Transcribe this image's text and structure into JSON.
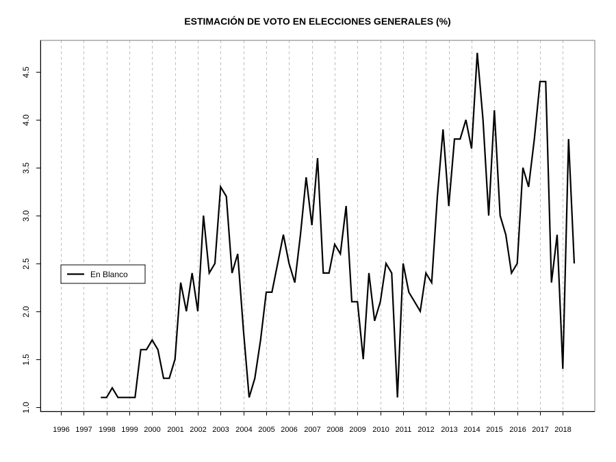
{
  "chart_data": {
    "type": "line",
    "title": "ESTIMACIÓN DE VOTO EN ELECCIONES GENERALES (%)",
    "xlabel": "",
    "ylabel": "",
    "xlim": [
      1995.1,
      2019.4
    ],
    "ylim": [
      0.955,
      4.83
    ],
    "grid": "vertical dashed at each year",
    "x_ticks": [
      1996,
      1997,
      1998,
      1999,
      2000,
      2001,
      2002,
      2003,
      2004,
      2005,
      2006,
      2007,
      2008,
      2009,
      2010,
      2011,
      2012,
      2013,
      2014,
      2015,
      2016,
      2017,
      2018
    ],
    "x_tick_labels": [
      "1996",
      "1997",
      "1998",
      "1999",
      "2000",
      "2001",
      "2002",
      "2003",
      "2004",
      "2005",
      "2006",
      "2007",
      "2008",
      "2009",
      "2010",
      "2011",
      "2012",
      "2013",
      "2014",
      "2015",
      "2016",
      "2017",
      "2018"
    ],
    "y_ticks": [
      1.0,
      1.5,
      2.0,
      2.5,
      3.0,
      3.5,
      4.0,
      4.5
    ],
    "y_tick_labels": [
      "1.0",
      "1.5",
      "2.0",
      "2.5",
      "3.0",
      "3.5",
      "4.0",
      "4.5"
    ],
    "legend": {
      "position": "left",
      "entries": [
        "En Blanco"
      ]
    },
    "series": [
      {
        "name": "En Blanco",
        "color": "#000000",
        "x_start": 1997.75,
        "x_step": 0.25,
        "values": [
          1.1,
          1.1,
          1.2,
          1.1,
          1.1,
          1.1,
          1.1,
          1.6,
          1.6,
          1.7,
          1.6,
          1.3,
          1.3,
          1.5,
          2.3,
          2.0,
          2.4,
          2.0,
          3.0,
          2.4,
          2.5,
          3.3,
          3.2,
          2.4,
          2.6,
          1.8,
          1.1,
          1.3,
          1.7,
          2.2,
          2.2,
          2.5,
          2.8,
          2.5,
          2.3,
          2.8,
          3.4,
          2.9,
          3.6,
          2.4,
          2.4,
          2.7,
          2.6,
          3.1,
          2.1,
          2.1,
          1.5,
          2.4,
          1.9,
          2.1,
          2.5,
          2.4,
          1.1,
          2.5,
          2.2,
          2.1,
          2.0,
          2.4,
          2.3,
          3.2,
          3.9,
          3.1,
          3.8,
          3.8,
          4.0,
          3.7,
          4.7,
          4.0,
          3.0,
          4.1,
          3.0,
          2.8,
          2.4,
          2.5,
          3.5,
          3.3,
          3.8,
          4.4,
          4.4,
          2.3,
          2.8,
          1.4,
          3.8,
          2.5
        ]
      }
    ]
  },
  "colors": {
    "line": "#000000",
    "grid": "#bebebe",
    "axis": "#000000",
    "frame": "#777777"
  }
}
